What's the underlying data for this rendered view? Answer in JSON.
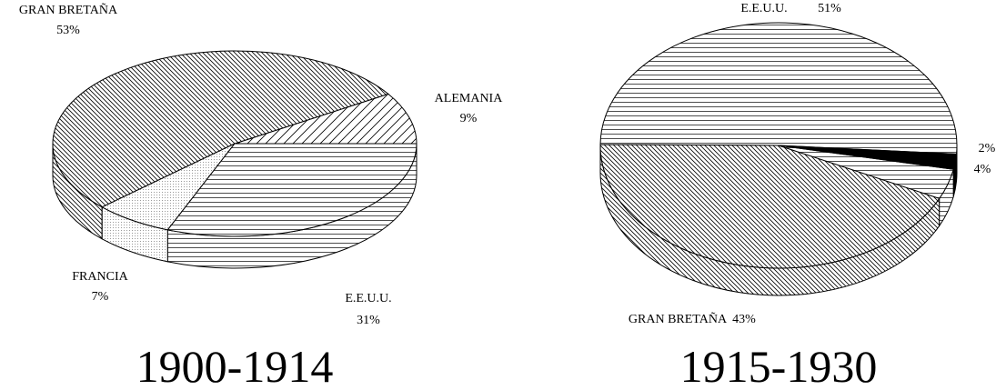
{
  "chart_data": [
    {
      "type": "pie",
      "title": "1900-1914",
      "categories": [
        "ALEMANIA",
        "GRAN BRETAÑA",
        "FRANCIA",
        "E.E.U.U."
      ],
      "values": [
        9,
        53,
        7,
        31
      ],
      "value_labels": [
        "9%",
        "53%",
        "7%",
        "31%"
      ],
      "patterns": [
        "diag-fwd",
        "diag-back",
        "dots",
        "horizontal"
      ],
      "startangle": 0,
      "direction": "counterclockwise"
    },
    {
      "type": "pie",
      "title": "1915-1930",
      "categories": [
        "E.E.U.U.",
        "GRAN BRETAÑA",
        null,
        null
      ],
      "values": [
        51,
        43,
        4,
        2
      ],
      "value_labels": [
        "51%",
        "43%",
        "4%",
        "2%"
      ],
      "patterns": [
        "horizontal",
        "diag-back",
        "horizontal",
        "solid"
      ],
      "startangle": -4,
      "direction": "counterclockwise"
    }
  ]
}
